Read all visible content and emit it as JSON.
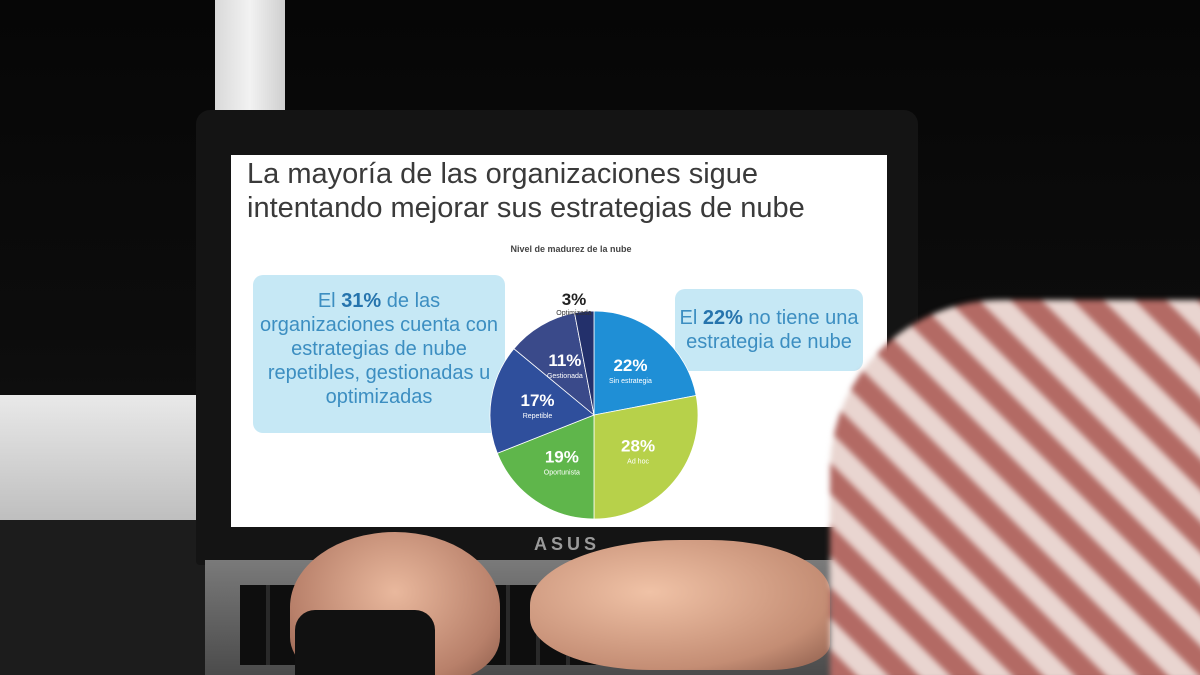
{
  "scene": {
    "laptop_brand": "ASUS"
  },
  "slide": {
    "title_line1": "La mayoría de las organizaciones sigue",
    "title_line2": "intentando mejorar sus estrategias de nube",
    "chart_title": "Nivel de madurez de la nube",
    "callout_left": {
      "pre": "El ",
      "highlight": "31%",
      "post": " de las organizaciones cuenta con estrategias de nube repetibles, gestionadas u optimizadas"
    },
    "callout_right": {
      "pre": "El ",
      "highlight": "22%",
      "post": " no tiene una estrategia de nube"
    }
  },
  "chart_data": {
    "type": "pie",
    "title": "Nivel de madurez de la nube",
    "slices": [
      {
        "name": "Sin estrategia",
        "value": 22,
        "label": "22%",
        "color": "#1f8fd6"
      },
      {
        "name": "Ad hoc",
        "value": 28,
        "label": "28%",
        "color": "#b7d14a"
      },
      {
        "name": "Oportunista",
        "value": 19,
        "label": "19%",
        "color": "#5fb64b"
      },
      {
        "name": "Repetible",
        "value": 17,
        "label": "17%",
        "color": "#2f4f9c"
      },
      {
        "name": "Gestionada",
        "value": 11,
        "label": "11%",
        "color": "#3a4a8a"
      },
      {
        "name": "Optimizada",
        "value": 3,
        "label": "3%",
        "color": "#23306b"
      }
    ]
  }
}
